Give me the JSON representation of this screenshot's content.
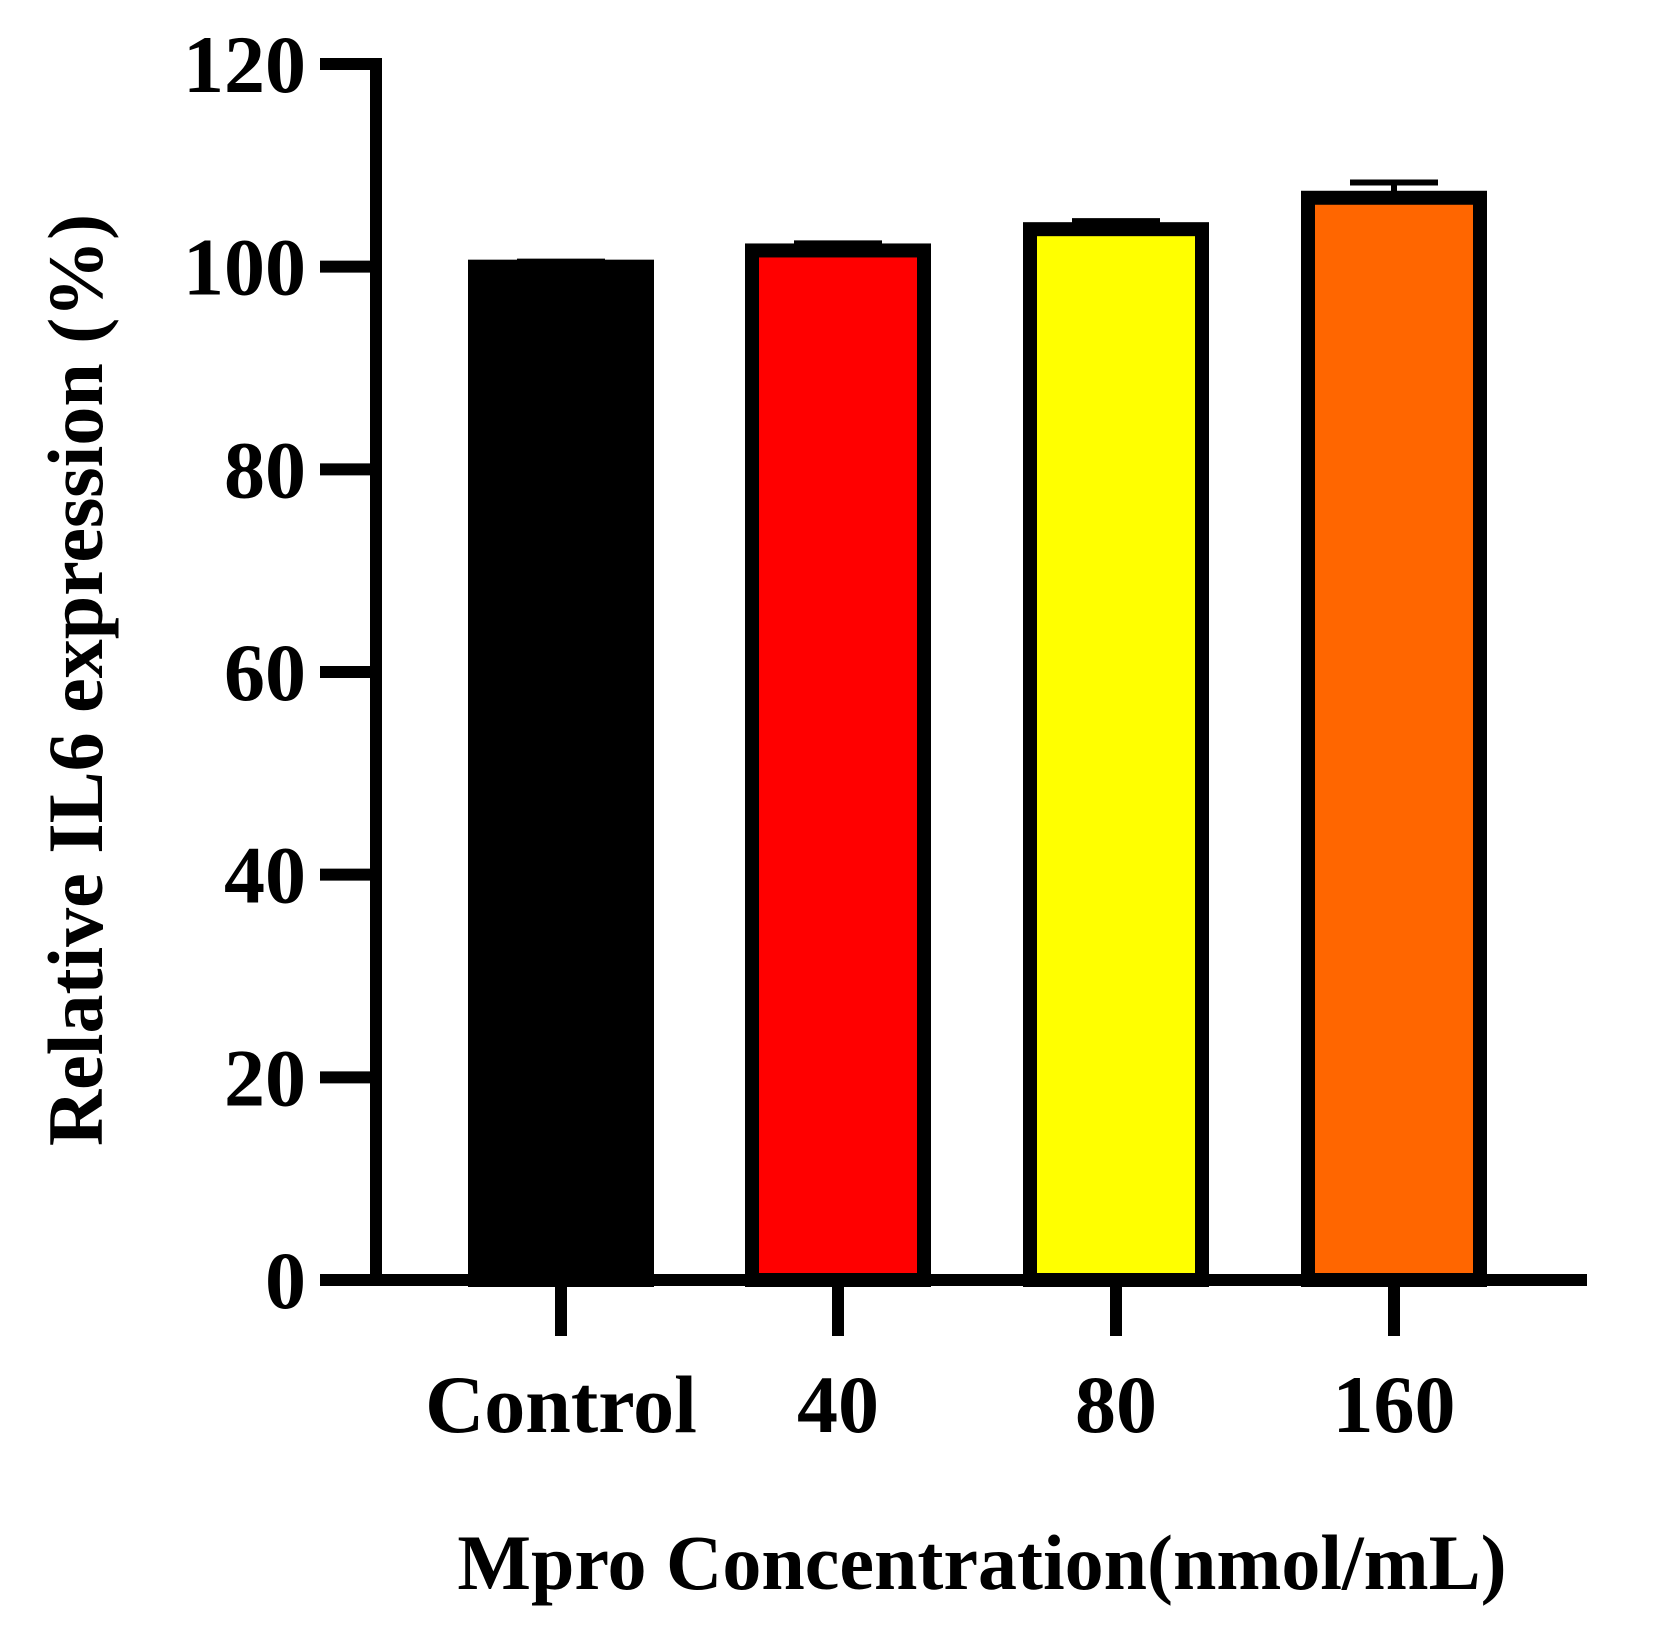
{
  "chart_data": {
    "type": "bar",
    "title": "",
    "xlabel": "Mpro Concentration(nmol/mL)",
    "ylabel": "Relative IL6 expression (%)",
    "ylim": [
      0,
      120
    ],
    "yticks": [
      0,
      20,
      40,
      60,
      80,
      100,
      120
    ],
    "ytick_labels": [
      "0",
      "20",
      "40",
      "60",
      "80",
      "100",
      "120"
    ],
    "categories": [
      "Control",
      "40",
      "80",
      "160"
    ],
    "values": [
      100.0,
      101.6,
      103.7,
      106.8
    ],
    "errors": [
      0.5,
      0.7,
      0.8,
      1.5
    ],
    "colors": [
      "#000000",
      "#ff0000",
      "#ffff00",
      "#ff6600"
    ],
    "outline_color": "#000000",
    "grid": false,
    "legend": "none"
  }
}
